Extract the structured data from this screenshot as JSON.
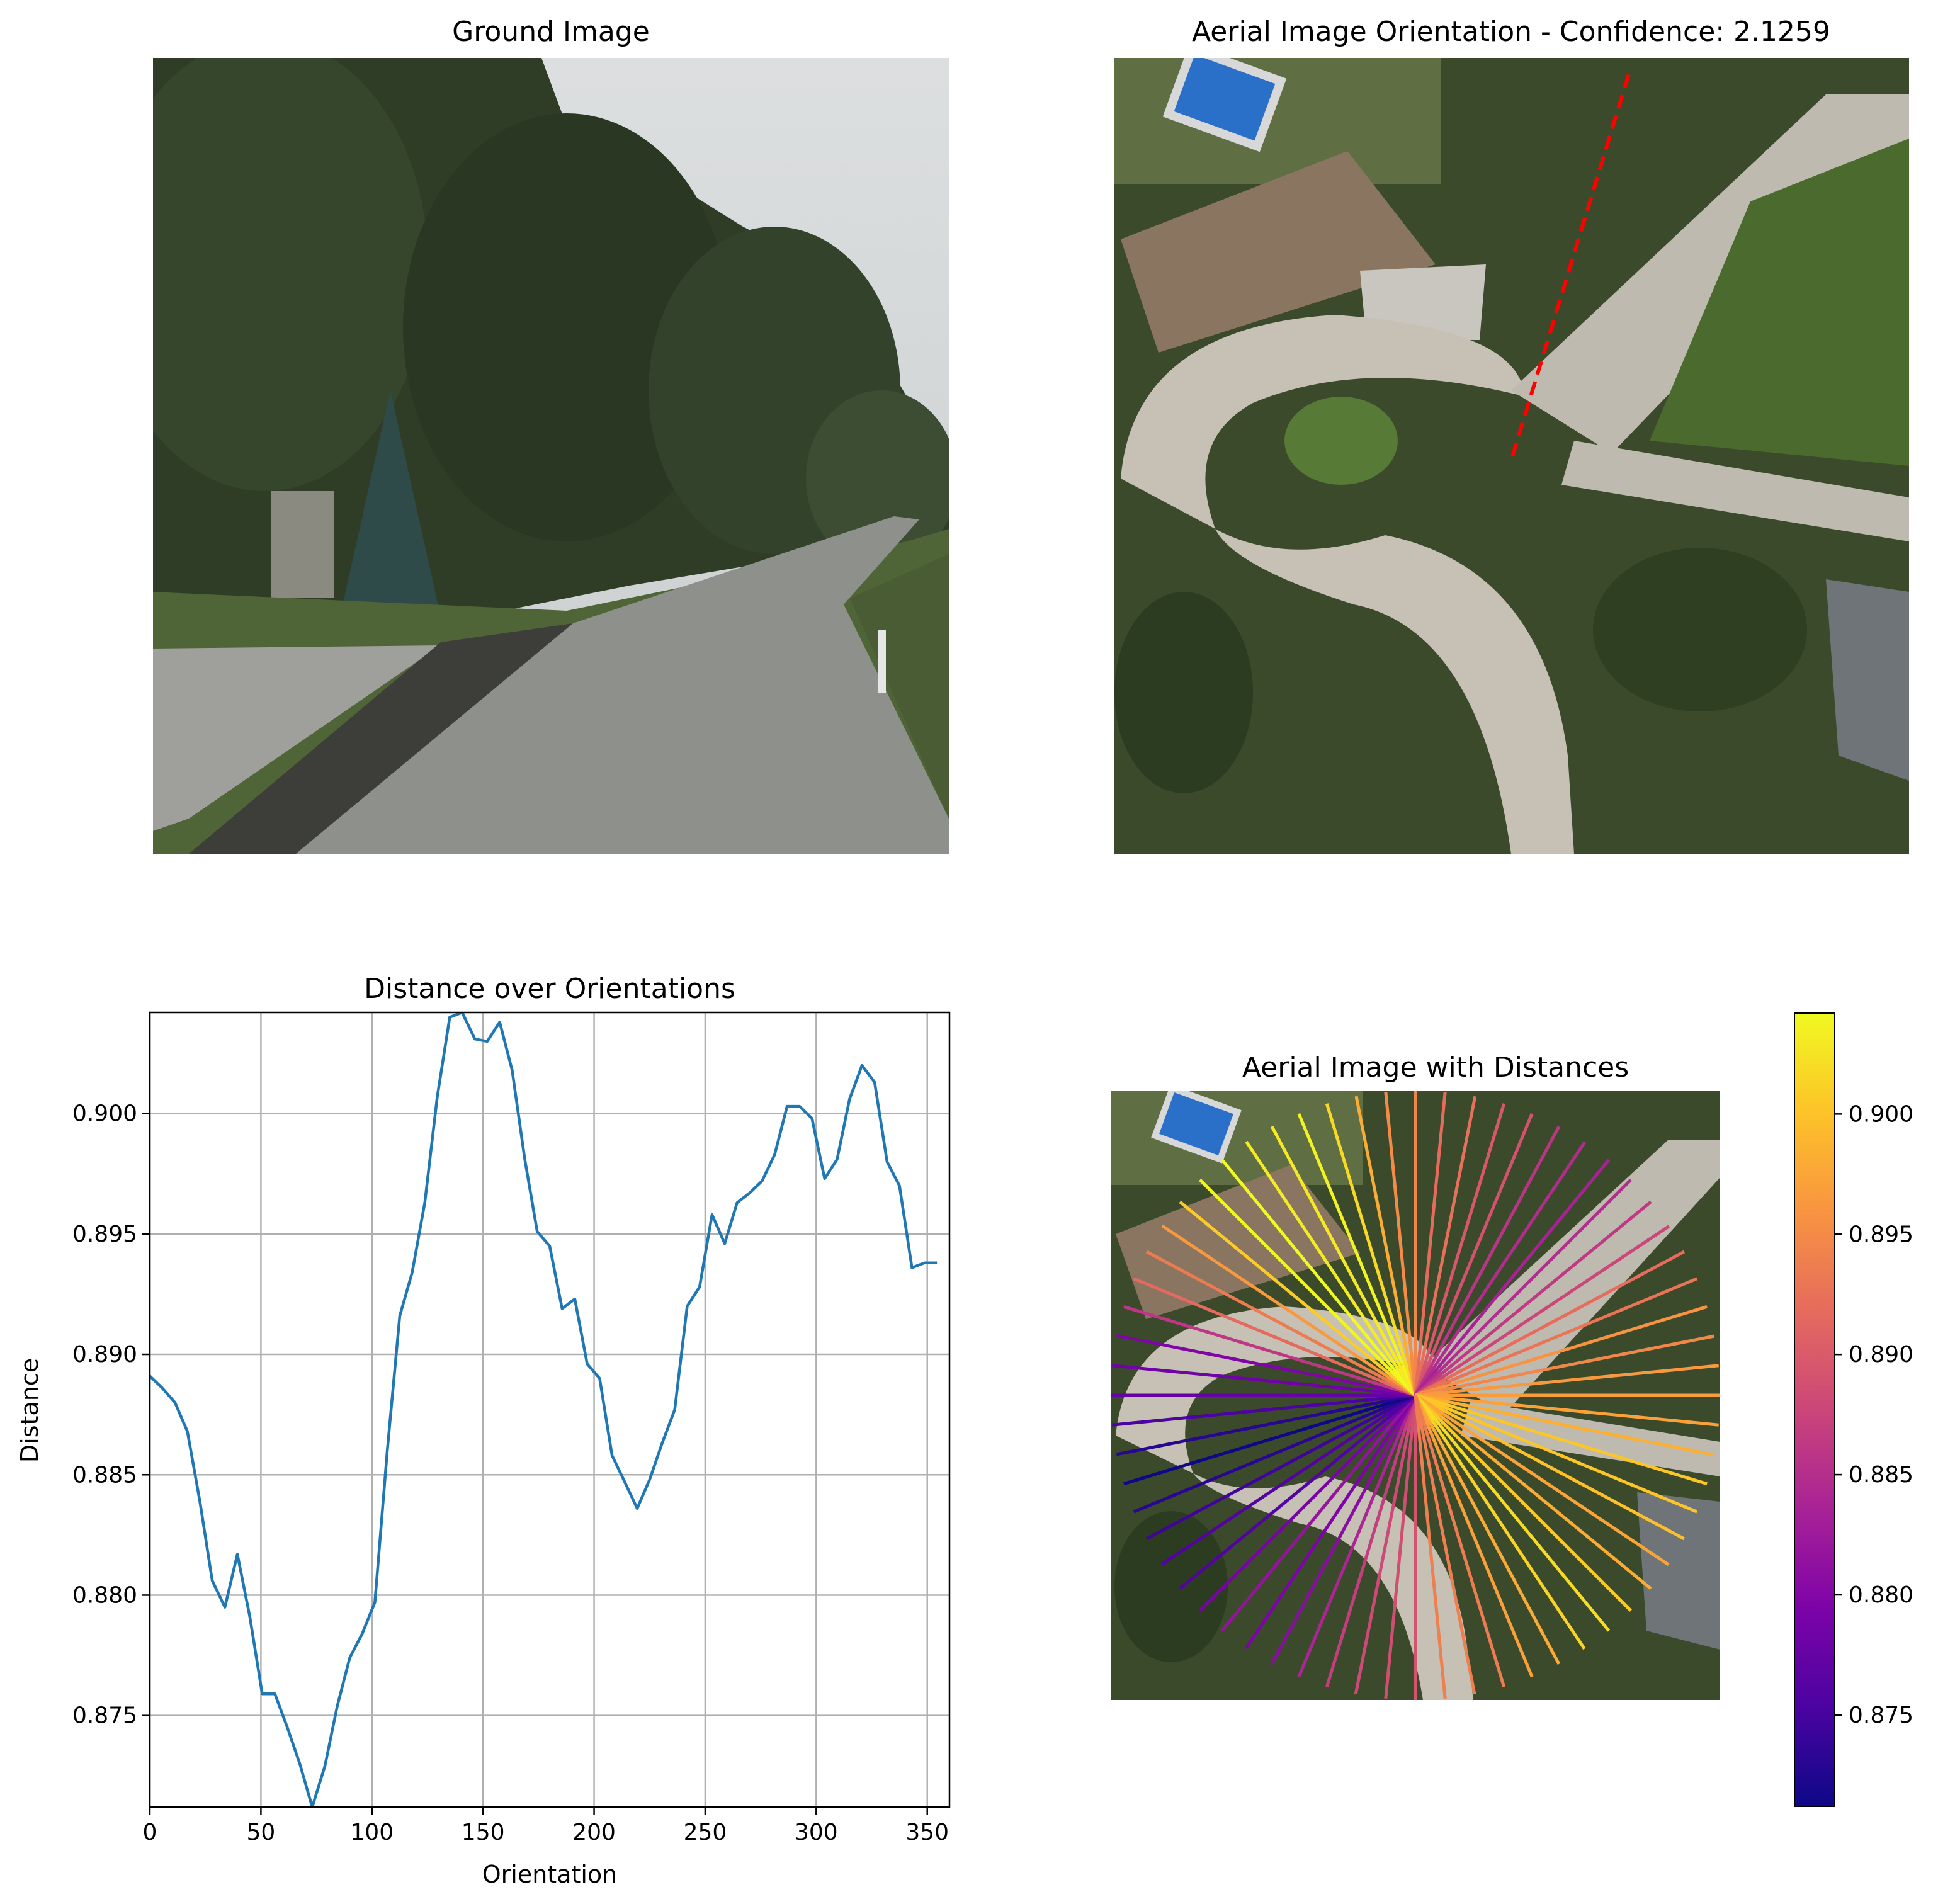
{
  "panels": {
    "ground": {
      "title": "Ground Image"
    },
    "aerial": {
      "title": "Aerial Image Orientation - Confidence: 2.1259"
    },
    "aerial_distances": {
      "title": "Aerial Image with Distances"
    }
  },
  "colorbar": {
    "colormap": "plasma",
    "range": [
      0.8712,
      0.9042
    ],
    "ticks": [
      0.875,
      0.88,
      0.885,
      0.89,
      0.895,
      0.9
    ],
    "tick_labels": [
      "0.875",
      "0.880",
      "0.885",
      "0.890",
      "0.895",
      "0.900"
    ]
  },
  "colors": {
    "line": "#1f77b4",
    "grid": "#b0b0b0",
    "orientation_marker": "#ff0000"
  },
  "chart_data": {
    "type": "line",
    "title": "Distance over Orientations",
    "xlabel": "Orientation",
    "ylabel": "Distance",
    "xlim": [
      0,
      360
    ],
    "ylim": [
      0.8712,
      0.9042
    ],
    "grid": true,
    "x_ticks": [
      0,
      50,
      100,
      150,
      200,
      250,
      300,
      350
    ],
    "x_tick_labels": [
      "0",
      "50",
      "100",
      "150",
      "200",
      "250",
      "300",
      "350"
    ],
    "y_ticks": [
      0.875,
      0.88,
      0.885,
      0.89,
      0.895,
      0.9
    ],
    "y_tick_labels": [
      "0.875",
      "0.880",
      "0.885",
      "0.890",
      "0.895",
      "0.900"
    ],
    "x": [
      0,
      5.6,
      11.3,
      16.9,
      22.5,
      28.1,
      33.8,
      39.4,
      45,
      50.6,
      56.3,
      61.9,
      67.5,
      73.1,
      78.8,
      84.4,
      90,
      95.6,
      101.3,
      106.9,
      112.5,
      118.1,
      123.8,
      129.4,
      135,
      140.6,
      146.3,
      151.9,
      157.5,
      163.1,
      168.8,
      174.4,
      180,
      185.6,
      191.3,
      196.9,
      202.5,
      208.1,
      213.8,
      219.4,
      225,
      230.6,
      236.3,
      241.9,
      247.5,
      253.1,
      258.8,
      264.4,
      270,
      275.6,
      281.3,
      286.9,
      292.5,
      298.1,
      303.8,
      309.4,
      315,
      320.6,
      326.3,
      331.9,
      337.5,
      343.1,
      348.8,
      354.4
    ],
    "y": [
      0.8891,
      0.8886,
      0.888,
      0.8868,
      0.8839,
      0.8806,
      0.8795,
      0.8817,
      0.8791,
      0.8759,
      0.8759,
      0.8745,
      0.873,
      0.8712,
      0.8729,
      0.8754,
      0.8774,
      0.8784,
      0.8797,
      0.886,
      0.8916,
      0.8934,
      0.8963,
      0.9007,
      0.904,
      0.9042,
      0.9031,
      0.903,
      0.9038,
      0.9018,
      0.8981,
      0.8951,
      0.8945,
      0.8919,
      0.8923,
      0.8896,
      0.889,
      0.8858,
      0.8847,
      0.8836,
      0.8848,
      0.8863,
      0.8877,
      0.892,
      0.8928,
      0.8958,
      0.8946,
      0.8963,
      0.8967,
      0.8972,
      0.8983,
      0.9003,
      0.9003,
      0.8998,
      0.8973,
      0.8981,
      0.9006,
      0.902,
      0.9013,
      0.898,
      0.897,
      0.8936,
      0.8938,
      0.8938
    ]
  }
}
